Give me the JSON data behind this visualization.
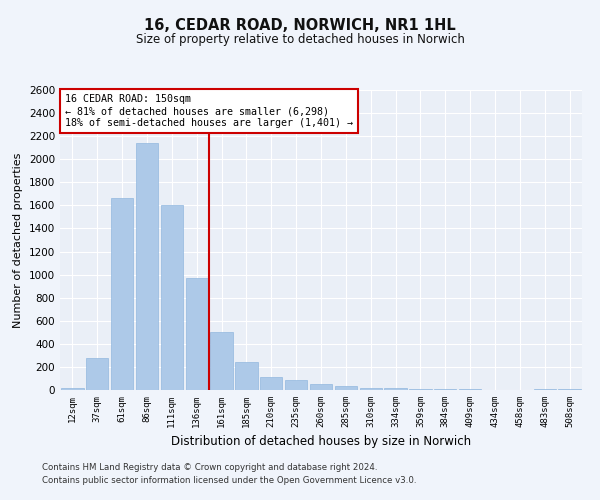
{
  "title_line1": "16, CEDAR ROAD, NORWICH, NR1 1HL",
  "title_line2": "Size of property relative to detached houses in Norwich",
  "xlabel": "Distribution of detached houses by size in Norwich",
  "ylabel": "Number of detached properties",
  "categories": [
    "12sqm",
    "37sqm",
    "61sqm",
    "86sqm",
    "111sqm",
    "136sqm",
    "161sqm",
    "185sqm",
    "210sqm",
    "235sqm",
    "260sqm",
    "285sqm",
    "310sqm",
    "334sqm",
    "359sqm",
    "384sqm",
    "409sqm",
    "434sqm",
    "458sqm",
    "483sqm",
    "508sqm"
  ],
  "values": [
    20,
    280,
    1660,
    2140,
    1600,
    970,
    500,
    240,
    115,
    90,
    50,
    35,
    20,
    18,
    12,
    8,
    6,
    4,
    2,
    10,
    5
  ],
  "bar_color": "#adc9e8",
  "bar_edge_color": "#92b8df",
  "vline_x_idx": 5,
  "vline_color": "#cc0000",
  "annotation_box_text": "16 CEDAR ROAD: 150sqm\n← 81% of detached houses are smaller (6,298)\n18% of semi-detached houses are larger (1,401) →",
  "annotation_box_color": "#cc0000",
  "ylim": [
    0,
    2600
  ],
  "yticks": [
    0,
    200,
    400,
    600,
    800,
    1000,
    1200,
    1400,
    1600,
    1800,
    2000,
    2200,
    2400,
    2600
  ],
  "bg_color": "#eaeff7",
  "grid_color": "#ffffff",
  "fig_bg_color": "#f0f4fb",
  "footer_line1": "Contains HM Land Registry data © Crown copyright and database right 2024.",
  "footer_line2": "Contains public sector information licensed under the Open Government Licence v3.0."
}
